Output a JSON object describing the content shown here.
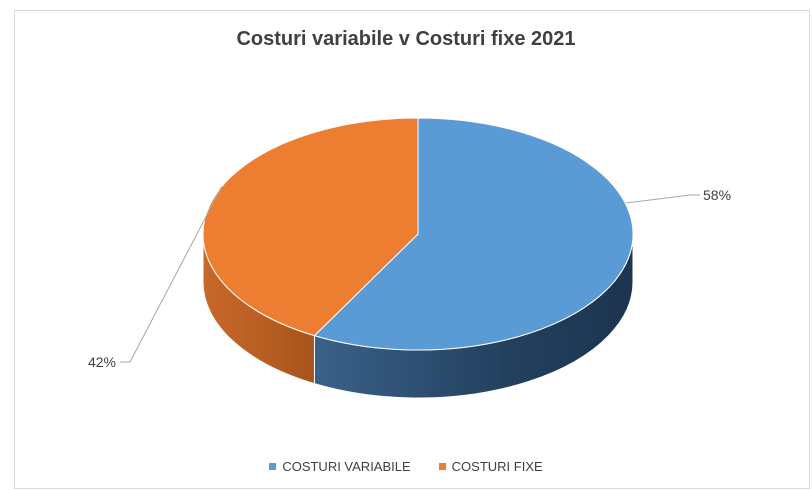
{
  "chart_data": {
    "type": "pie",
    "title": "Costuri variabile v Costuri fixe 2021",
    "series": [
      {
        "name": "COSTURI VARIABILE",
        "value": 58,
        "label": "58%",
        "color": "#5b9bd5",
        "side_color": "#1f3a56"
      },
      {
        "name": "COSTURI FIXE",
        "value": 42,
        "label": "42%",
        "color": "#ed7d31",
        "side_color": "#b05a1e"
      }
    ],
    "legend_position": "bottom",
    "three_d": true
  }
}
